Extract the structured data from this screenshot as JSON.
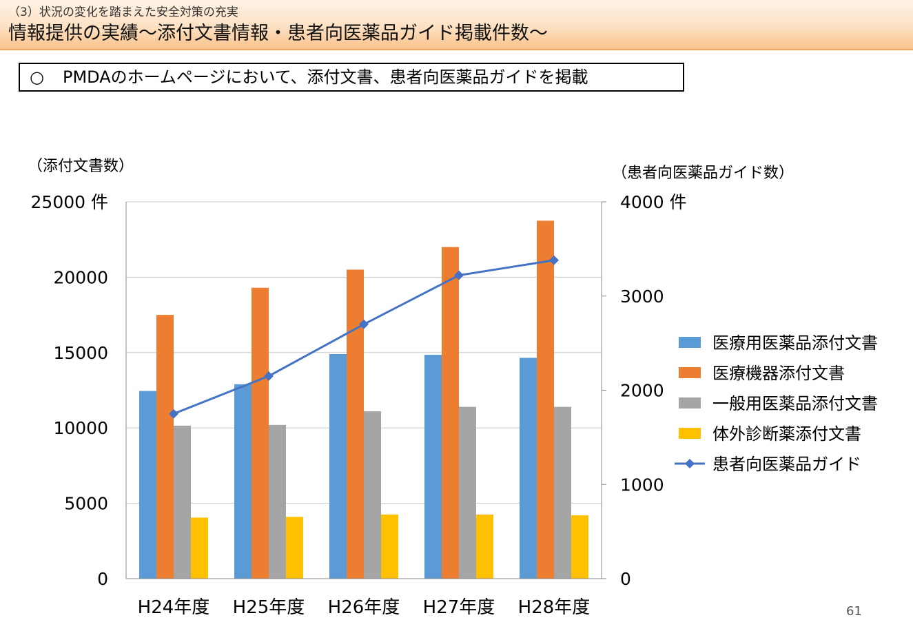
{
  "header": {
    "subtitle": "（3）状況の変化を踏まえた安全対策の充実",
    "title": "情報提供の実績〜添付文書情報・患者向医薬品ガイド掲載件数〜"
  },
  "notice": {
    "mark": "○",
    "text": "PMDAのホームページにおいて、添付文書、患者向医薬品ガイドを掲載"
  },
  "page_number": "61",
  "chart_data": {
    "type": "bar",
    "categories": [
      "H24年度",
      "H25年度",
      "H26年度",
      "H27年度",
      "H28年度"
    ],
    "ylabel": "（添付文書数）",
    "ylabel_right": "（患者向医薬品ガイド数）",
    "ylim": [
      0,
      25000
    ],
    "ylim_right": [
      0,
      4000
    ],
    "yticks": [
      "0",
      "5000",
      "10000",
      "15000",
      "20000",
      "25000 件"
    ],
    "yticks_right": [
      "0",
      "1000",
      "2000",
      "3000",
      "4000 件"
    ],
    "grid": true,
    "legend_position": "right",
    "series": [
      {
        "name": "医療用医薬品添付文書",
        "type": "bar",
        "axis": "left",
        "color": "#5b9bd5",
        "values": [
          12450,
          12900,
          14900,
          14850,
          14650
        ]
      },
      {
        "name": "医療機器添付文書",
        "type": "bar",
        "axis": "left",
        "color": "#ed7d31",
        "values": [
          17500,
          19300,
          20500,
          22000,
          23750
        ]
      },
      {
        "name": "一般用医薬品添付文書",
        "type": "bar",
        "axis": "left",
        "color": "#a5a5a5",
        "values": [
          10150,
          10200,
          11100,
          11400,
          11400
        ]
      },
      {
        "name": "体外診断薬添付文書",
        "type": "bar",
        "axis": "left",
        "color": "#ffc000",
        "values": [
          4050,
          4100,
          4250,
          4250,
          4200
        ]
      },
      {
        "name": "患者向医薬品ガイド",
        "type": "line",
        "axis": "right",
        "color": "#4472c4",
        "values": [
          1750,
          2150,
          2700,
          3220,
          3380
        ]
      }
    ]
  }
}
